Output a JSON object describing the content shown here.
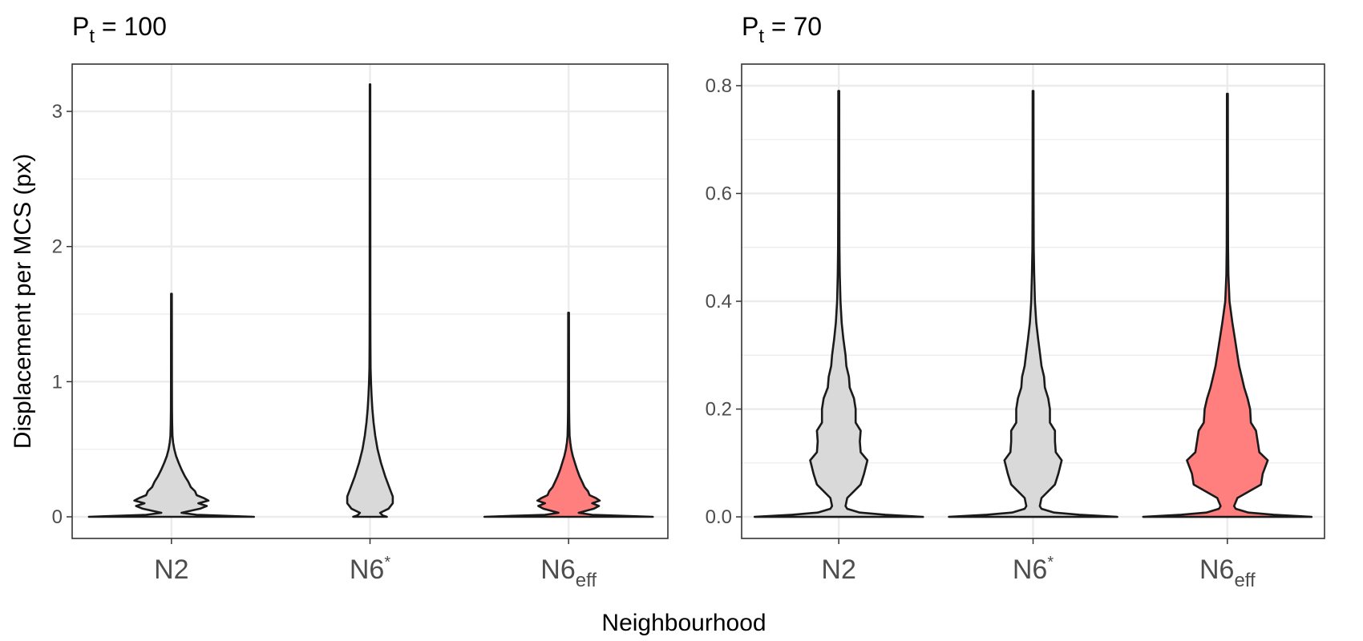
{
  "x_axis_title": "Neighbourhood",
  "y_axis_title": "Displacement per MCS (px)",
  "colors": {
    "grey_fill": "#d9d9d9",
    "red_fill": "#ff7f7f",
    "outline": "#1a1a1a",
    "grid_major": "#ebebeb",
    "panel_border": "#333333"
  },
  "chart_data": [
    {
      "type": "violin",
      "title": {
        "main": "P",
        "sub": "t",
        "rest": " = 100"
      },
      "ylim": [
        -0.16,
        3.35
      ],
      "y_ticks": [
        0,
        1,
        2,
        3
      ],
      "y_tick_labels": [
        "0",
        "1",
        "2",
        "3"
      ],
      "categories": [
        {
          "main": "N2",
          "sup": "",
          "sub": ""
        },
        {
          "main": "N6",
          "sup": "*",
          "sub": ""
        },
        {
          "main": "N6",
          "sup": "",
          "sub": "eff"
        }
      ],
      "series": [
        {
          "category": "N2",
          "fill": "grey",
          "max": 1.65,
          "profile": [
            [
              0,
              0.98
            ],
            [
              0.015,
              0.3
            ],
            [
              0.03,
              0.12
            ],
            [
              0.06,
              0.34
            ],
            [
              0.08,
              0.42
            ],
            [
              0.1,
              0.32
            ],
            [
              0.12,
              0.44
            ],
            [
              0.14,
              0.38
            ],
            [
              0.16,
              0.3
            ],
            [
              0.19,
              0.28
            ],
            [
              0.22,
              0.23
            ],
            [
              0.26,
              0.2
            ],
            [
              0.3,
              0.16
            ],
            [
              0.35,
              0.12
            ],
            [
              0.4,
              0.085
            ],
            [
              0.45,
              0.055
            ],
            [
              0.5,
              0.034
            ],
            [
              0.55,
              0.02
            ],
            [
              0.6,
              0.012
            ],
            [
              0.7,
              0.008
            ],
            [
              0.8,
              0.006
            ],
            [
              1.0,
              0.005
            ],
            [
              1.65,
              0.004
            ]
          ]
        },
        {
          "category": "N6*",
          "fill": "grey",
          "max": 3.2,
          "profile": [
            [
              0,
              0.2
            ],
            [
              0.01,
              0.15
            ],
            [
              0.03,
              0.12
            ],
            [
              0.06,
              0.22
            ],
            [
              0.1,
              0.27
            ],
            [
              0.15,
              0.27
            ],
            [
              0.2,
              0.24
            ],
            [
              0.3,
              0.18
            ],
            [
              0.4,
              0.13
            ],
            [
              0.5,
              0.09
            ],
            [
              0.6,
              0.062
            ],
            [
              0.7,
              0.042
            ],
            [
              0.8,
              0.028
            ],
            [
              0.9,
              0.018
            ],
            [
              1.0,
              0.011
            ],
            [
              1.1,
              0.007
            ],
            [
              1.3,
              0.005
            ],
            [
              1.6,
              0.004
            ],
            [
              2.0,
              0.004
            ],
            [
              3.2,
              0.003
            ]
          ]
        },
        {
          "category": "N6eff",
          "fill": "red",
          "max": 1.51,
          "profile": [
            [
              0,
              1.0
            ],
            [
              0.015,
              0.28
            ],
            [
              0.03,
              0.12
            ],
            [
              0.06,
              0.3
            ],
            [
              0.08,
              0.36
            ],
            [
              0.1,
              0.28
            ],
            [
              0.12,
              0.37
            ],
            [
              0.14,
              0.32
            ],
            [
              0.16,
              0.25
            ],
            [
              0.19,
              0.23
            ],
            [
              0.22,
              0.19
            ],
            [
              0.26,
              0.16
            ],
            [
              0.3,
              0.13
            ],
            [
              0.35,
              0.1
            ],
            [
              0.4,
              0.075
            ],
            [
              0.45,
              0.05
            ],
            [
              0.5,
              0.032
            ],
            [
              0.55,
              0.02
            ],
            [
              0.6,
              0.012
            ],
            [
              0.7,
              0.008
            ],
            [
              0.8,
              0.006
            ],
            [
              1.0,
              0.005
            ],
            [
              1.51,
              0.004
            ]
          ]
        }
      ]
    },
    {
      "type": "violin",
      "title": {
        "main": "P",
        "sub": "t",
        "rest": " = 70"
      },
      "ylim": [
        -0.04,
        0.84
      ],
      "y_ticks": [
        0.0,
        0.2,
        0.4,
        0.6,
        0.8
      ],
      "y_tick_labels": [
        "0.0",
        "0.2",
        "0.4",
        "0.6",
        "0.8"
      ],
      "categories": [
        {
          "main": "N2",
          "sup": "",
          "sub": ""
        },
        {
          "main": "N6",
          "sup": "*",
          "sub": ""
        },
        {
          "main": "N6",
          "sup": "",
          "sub": "eff"
        }
      ],
      "series": [
        {
          "category": "N2",
          "fill": "grey",
          "max": 0.79,
          "profile": [
            [
              0,
              1.0
            ],
            [
              0.004,
              0.55
            ],
            [
              0.008,
              0.25
            ],
            [
              0.015,
              0.1
            ],
            [
              0.02,
              0.08
            ],
            [
              0.035,
              0.1
            ],
            [
              0.06,
              0.26
            ],
            [
              0.08,
              0.3
            ],
            [
              0.105,
              0.34
            ],
            [
              0.12,
              0.26
            ],
            [
              0.14,
              0.25
            ],
            [
              0.16,
              0.26
            ],
            [
              0.175,
              0.2
            ],
            [
              0.2,
              0.2
            ],
            [
              0.22,
              0.18
            ],
            [
              0.24,
              0.13
            ],
            [
              0.26,
              0.12
            ],
            [
              0.28,
              0.09
            ],
            [
              0.3,
              0.08
            ],
            [
              0.33,
              0.055
            ],
            [
              0.36,
              0.035
            ],
            [
              0.4,
              0.02
            ],
            [
              0.45,
              0.012
            ],
            [
              0.5,
              0.008
            ],
            [
              0.6,
              0.006
            ],
            [
              0.79,
              0.005
            ]
          ]
        },
        {
          "category": "N6*",
          "fill": "grey",
          "max": 0.79,
          "profile": [
            [
              0,
              1.0
            ],
            [
              0.004,
              0.55
            ],
            [
              0.008,
              0.25
            ],
            [
              0.015,
              0.1
            ],
            [
              0.02,
              0.08
            ],
            [
              0.035,
              0.1
            ],
            [
              0.06,
              0.26
            ],
            [
              0.08,
              0.3
            ],
            [
              0.105,
              0.34
            ],
            [
              0.12,
              0.27
            ],
            [
              0.14,
              0.26
            ],
            [
              0.16,
              0.26
            ],
            [
              0.175,
              0.2
            ],
            [
              0.2,
              0.2
            ],
            [
              0.22,
              0.18
            ],
            [
              0.24,
              0.14
            ],
            [
              0.26,
              0.13
            ],
            [
              0.28,
              0.1
            ],
            [
              0.3,
              0.085
            ],
            [
              0.33,
              0.06
            ],
            [
              0.36,
              0.038
            ],
            [
              0.4,
              0.022
            ],
            [
              0.45,
              0.013
            ],
            [
              0.5,
              0.008
            ],
            [
              0.6,
              0.006
            ],
            [
              0.79,
              0.005
            ]
          ]
        },
        {
          "category": "N6eff",
          "fill": "red",
          "max": 0.785,
          "profile": [
            [
              0,
              1.0
            ],
            [
              0.004,
              0.55
            ],
            [
              0.008,
              0.25
            ],
            [
              0.015,
              0.1
            ],
            [
              0.02,
              0.08
            ],
            [
              0.035,
              0.12
            ],
            [
              0.06,
              0.4
            ],
            [
              0.08,
              0.42
            ],
            [
              0.105,
              0.48
            ],
            [
              0.12,
              0.38
            ],
            [
              0.14,
              0.36
            ],
            [
              0.16,
              0.34
            ],
            [
              0.175,
              0.28
            ],
            [
              0.2,
              0.27
            ],
            [
              0.22,
              0.24
            ],
            [
              0.24,
              0.2
            ],
            [
              0.26,
              0.17
            ],
            [
              0.28,
              0.14
            ],
            [
              0.3,
              0.12
            ],
            [
              0.33,
              0.09
            ],
            [
              0.36,
              0.06
            ],
            [
              0.4,
              0.025
            ],
            [
              0.45,
              0.012
            ],
            [
              0.5,
              0.008
            ],
            [
              0.6,
              0.006
            ],
            [
              0.785,
              0.005
            ]
          ]
        }
      ]
    }
  ]
}
